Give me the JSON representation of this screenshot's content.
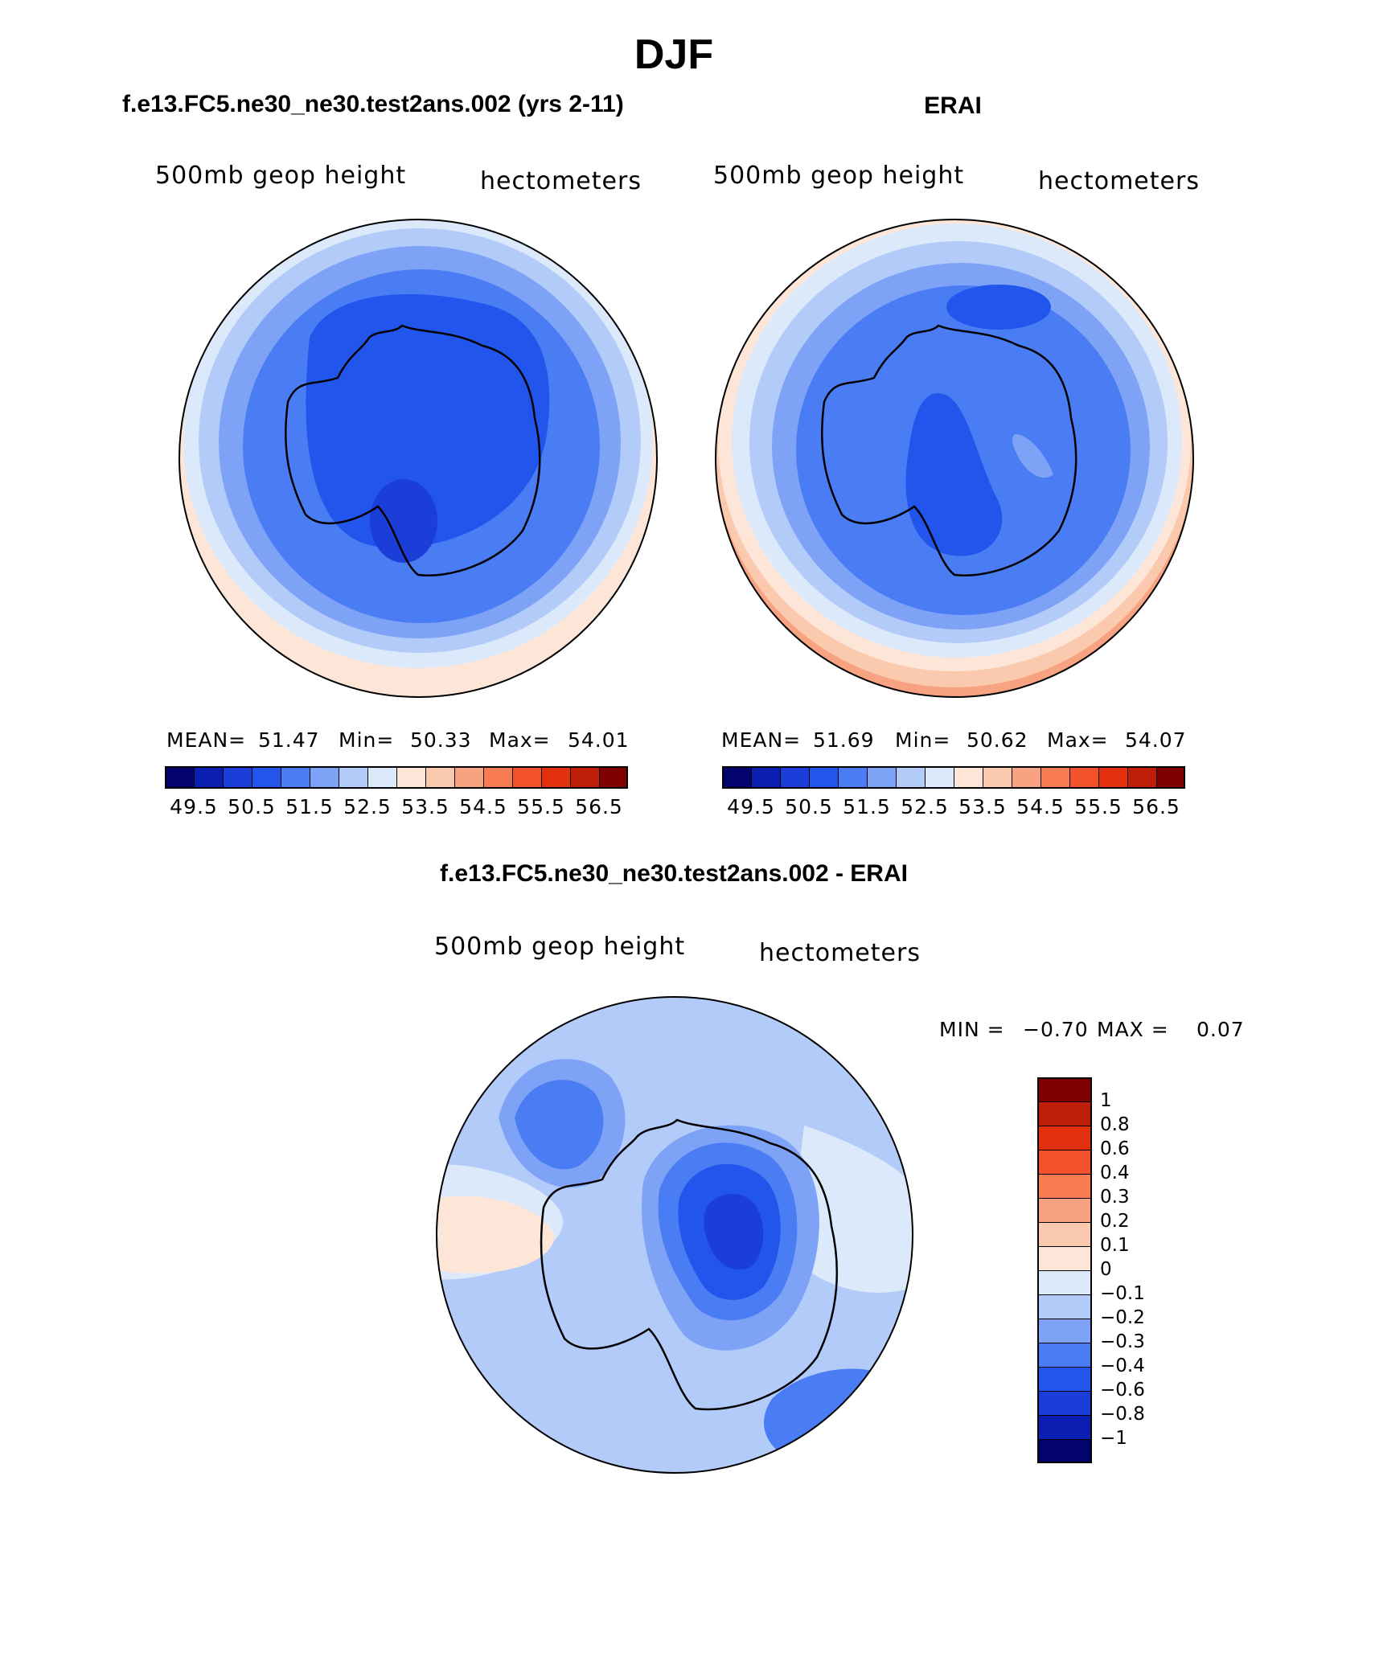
{
  "page_title": "DJF",
  "chart_data": [
    {
      "type": "heatmap",
      "title": "f.e13.FC5.ne30_ne30.test2ans.002 (yrs 2-11)",
      "field_label": "500mb  geop  height",
      "units_label": "hectometers",
      "stats": {
        "mean_label": "MEAN=",
        "mean": "51.47",
        "min_label": "Min=",
        "min": "50.33",
        "max_label": "Max=",
        "max": "54.01"
      },
      "colorbar": {
        "tick_labels": [
          "49.5",
          "50.5",
          "51.5",
          "52.5",
          "53.5",
          "54.5",
          "55.5",
          "56.5"
        ],
        "colors": [
          "#03036e",
          "#0a1fb2",
          "#1a3ed7",
          "#2255ec",
          "#4a7cf3",
          "#7ea3f6",
          "#b2cbf9",
          "#dce9fb",
          "#fde6d8",
          "#fbc9ad",
          "#f7a381",
          "#f77c54",
          "#f3532b",
          "#e3300f",
          "#bf1f08",
          "#800000"
        ]
      }
    },
    {
      "type": "heatmap",
      "title": "ERAI",
      "field_label": "500mb  geop  height",
      "units_label": "hectometers",
      "stats": {
        "mean_label": "MEAN=",
        "mean": "51.69",
        "min_label": "Min=",
        "min": "50.62",
        "max_label": "Max=",
        "max": "54.07"
      },
      "colorbar": {
        "tick_labels": [
          "49.5",
          "50.5",
          "51.5",
          "52.5",
          "53.5",
          "54.5",
          "55.5",
          "56.5"
        ],
        "colors": [
          "#03036e",
          "#0a1fb2",
          "#1a3ed7",
          "#2255ec",
          "#4a7cf3",
          "#7ea3f6",
          "#b2cbf9",
          "#dce9fb",
          "#fde6d8",
          "#fbc9ad",
          "#f7a381",
          "#f77c54",
          "#f3532b",
          "#e3300f",
          "#bf1f08",
          "#800000"
        ]
      }
    },
    {
      "type": "heatmap",
      "title": "f.e13.FC5.ne30_ne30.test2ans.002 - ERAI",
      "field_label": "500mb  geop  height",
      "units_label": "hectometers",
      "stats": {
        "min_label": "MIN =",
        "min": "−0.70",
        "max_label": "MAX =",
        "max": "0.07"
      },
      "colorbar": {
        "tick_labels": [
          "1",
          "0.8",
          "0.6",
          "0.4",
          "0.3",
          "0.2",
          "0.1",
          "0",
          "−0.1",
          "−0.2",
          "−0.3",
          "−0.4",
          "−0.6",
          "−0.8",
          "−1"
        ],
        "colors": [
          "#800000",
          "#bf1f08",
          "#e3300f",
          "#f3532b",
          "#f77c54",
          "#f7a381",
          "#fbc9ad",
          "#fde6d8",
          "#dce9fb",
          "#b2cbf9",
          "#7ea3f6",
          "#4a7cf3",
          "#2255ec",
          "#1a3ed7",
          "#0a1fb2",
          "#03036e"
        ]
      }
    }
  ]
}
